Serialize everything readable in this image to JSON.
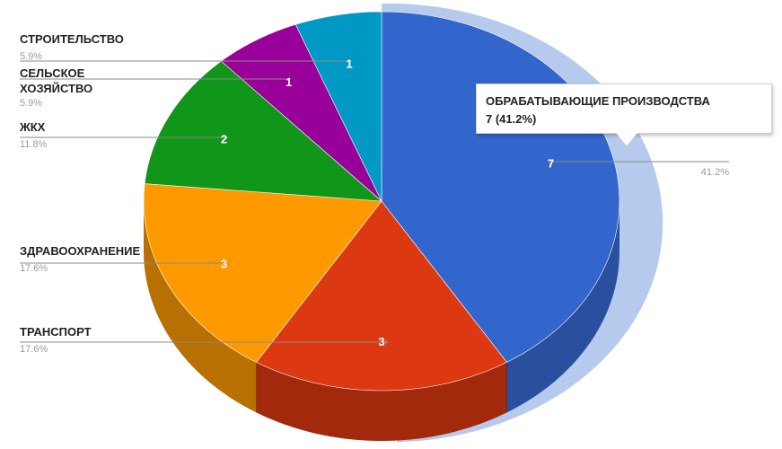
{
  "chart_data": {
    "type": "pie",
    "style": "3d",
    "slices": [
      {
        "label": "ОБРАБАТЫВАЮЩИЕ ПРОИЗВОДСТВА",
        "value": 7,
        "percent": "41.2%",
        "color": "#3366cc",
        "side": "#2a4f9e"
      },
      {
        "label": "ТРАНСПОРТ",
        "value": 3,
        "percent": "17.6%",
        "color": "#dc3912",
        "side": "#a3290c"
      },
      {
        "label": "ЗДРАВООХРАНЕНИЕ",
        "value": 3,
        "percent": "17.6%",
        "color": "#ff9900",
        "side": "#b87000"
      },
      {
        "label": "ЖКХ",
        "value": 2,
        "percent": "11.8%",
        "color": "#109618",
        "side": "#0b6a11"
      },
      {
        "label": "СЕЛЬСКОЕ ХОЗЯЙСТВО",
        "value": 1,
        "percent": "5.9%",
        "color": "#990099",
        "side": "#6b006b"
      },
      {
        "label": "СТРОИТЕЛЬСТВО",
        "value": 1,
        "percent": "5.9%",
        "color": "#0099c6",
        "side": "#006d8d"
      }
    ],
    "highlighted": "ОБРАБАТЫВАЮЩИЕ ПРОИЗВОДСТВА"
  },
  "tooltip": {
    "title": "ОБРАБАТЫВАЮЩИЕ ПРОИЗВОДСТВА",
    "value_text": "7 (41.2%)"
  }
}
